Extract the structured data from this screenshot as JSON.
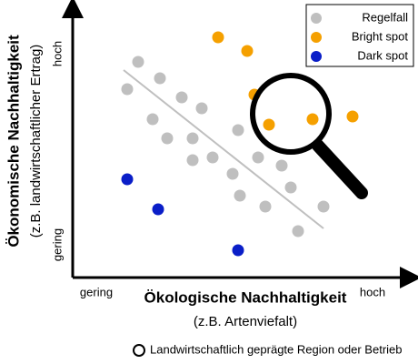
{
  "chart_data": {
    "type": "scatter",
    "xlabel": [
      "Ökologische Nachhaltigkeit",
      "(z.B. Artenviefalt)"
    ],
    "ylabel": [
      "Ökonomische Nachhaltigkeit",
      "(z.B. landwirtschaftlicher Ertrag)"
    ],
    "xlim": [
      0,
      95
    ],
    "ylim": [
      0,
      100
    ],
    "xticks": [
      {
        "value": 6.5,
        "label": "gering"
      },
      {
        "value": 82.5,
        "label": "hoch"
      }
    ],
    "yticks": [
      {
        "value": 12,
        "label": "gering"
      },
      {
        "value": 82,
        "label": "hoch"
      }
    ],
    "legend": "upper right",
    "series": [
      {
        "name": "Regelfall",
        "color": "#bfbfbf",
        "x": [
          18,
          15,
          24,
          30,
          22,
          35.5,
          26,
          33,
          33,
          38.5,
          45.5,
          44,
          51,
          57.5,
          46,
          53,
          60,
          69,
          62
        ],
        "y": [
          79,
          69,
          73,
          66,
          58,
          62,
          51,
          51,
          43,
          44,
          54,
          38,
          44,
          41,
          30,
          26,
          33,
          26,
          17
        ]
      },
      {
        "name": "Bright spot",
        "color": "#f5a000",
        "x": [
          40,
          48,
          50,
          54,
          66,
          77
        ],
        "y": [
          88,
          83,
          67,
          56,
          58,
          59
        ]
      },
      {
        "name": "Dark spot",
        "color": "#0a1ec8",
        "x": [
          15,
          23.5,
          45.5
        ],
        "y": [
          36,
          25,
          10
        ]
      }
    ],
    "trendline": {
      "x": [
        14,
        69
      ],
      "y": [
        76,
        18
      ],
      "color": "#bfbfbf"
    },
    "annotations": [
      "Landwirtschaftlich geprägte Region oder Betrieb"
    ]
  }
}
